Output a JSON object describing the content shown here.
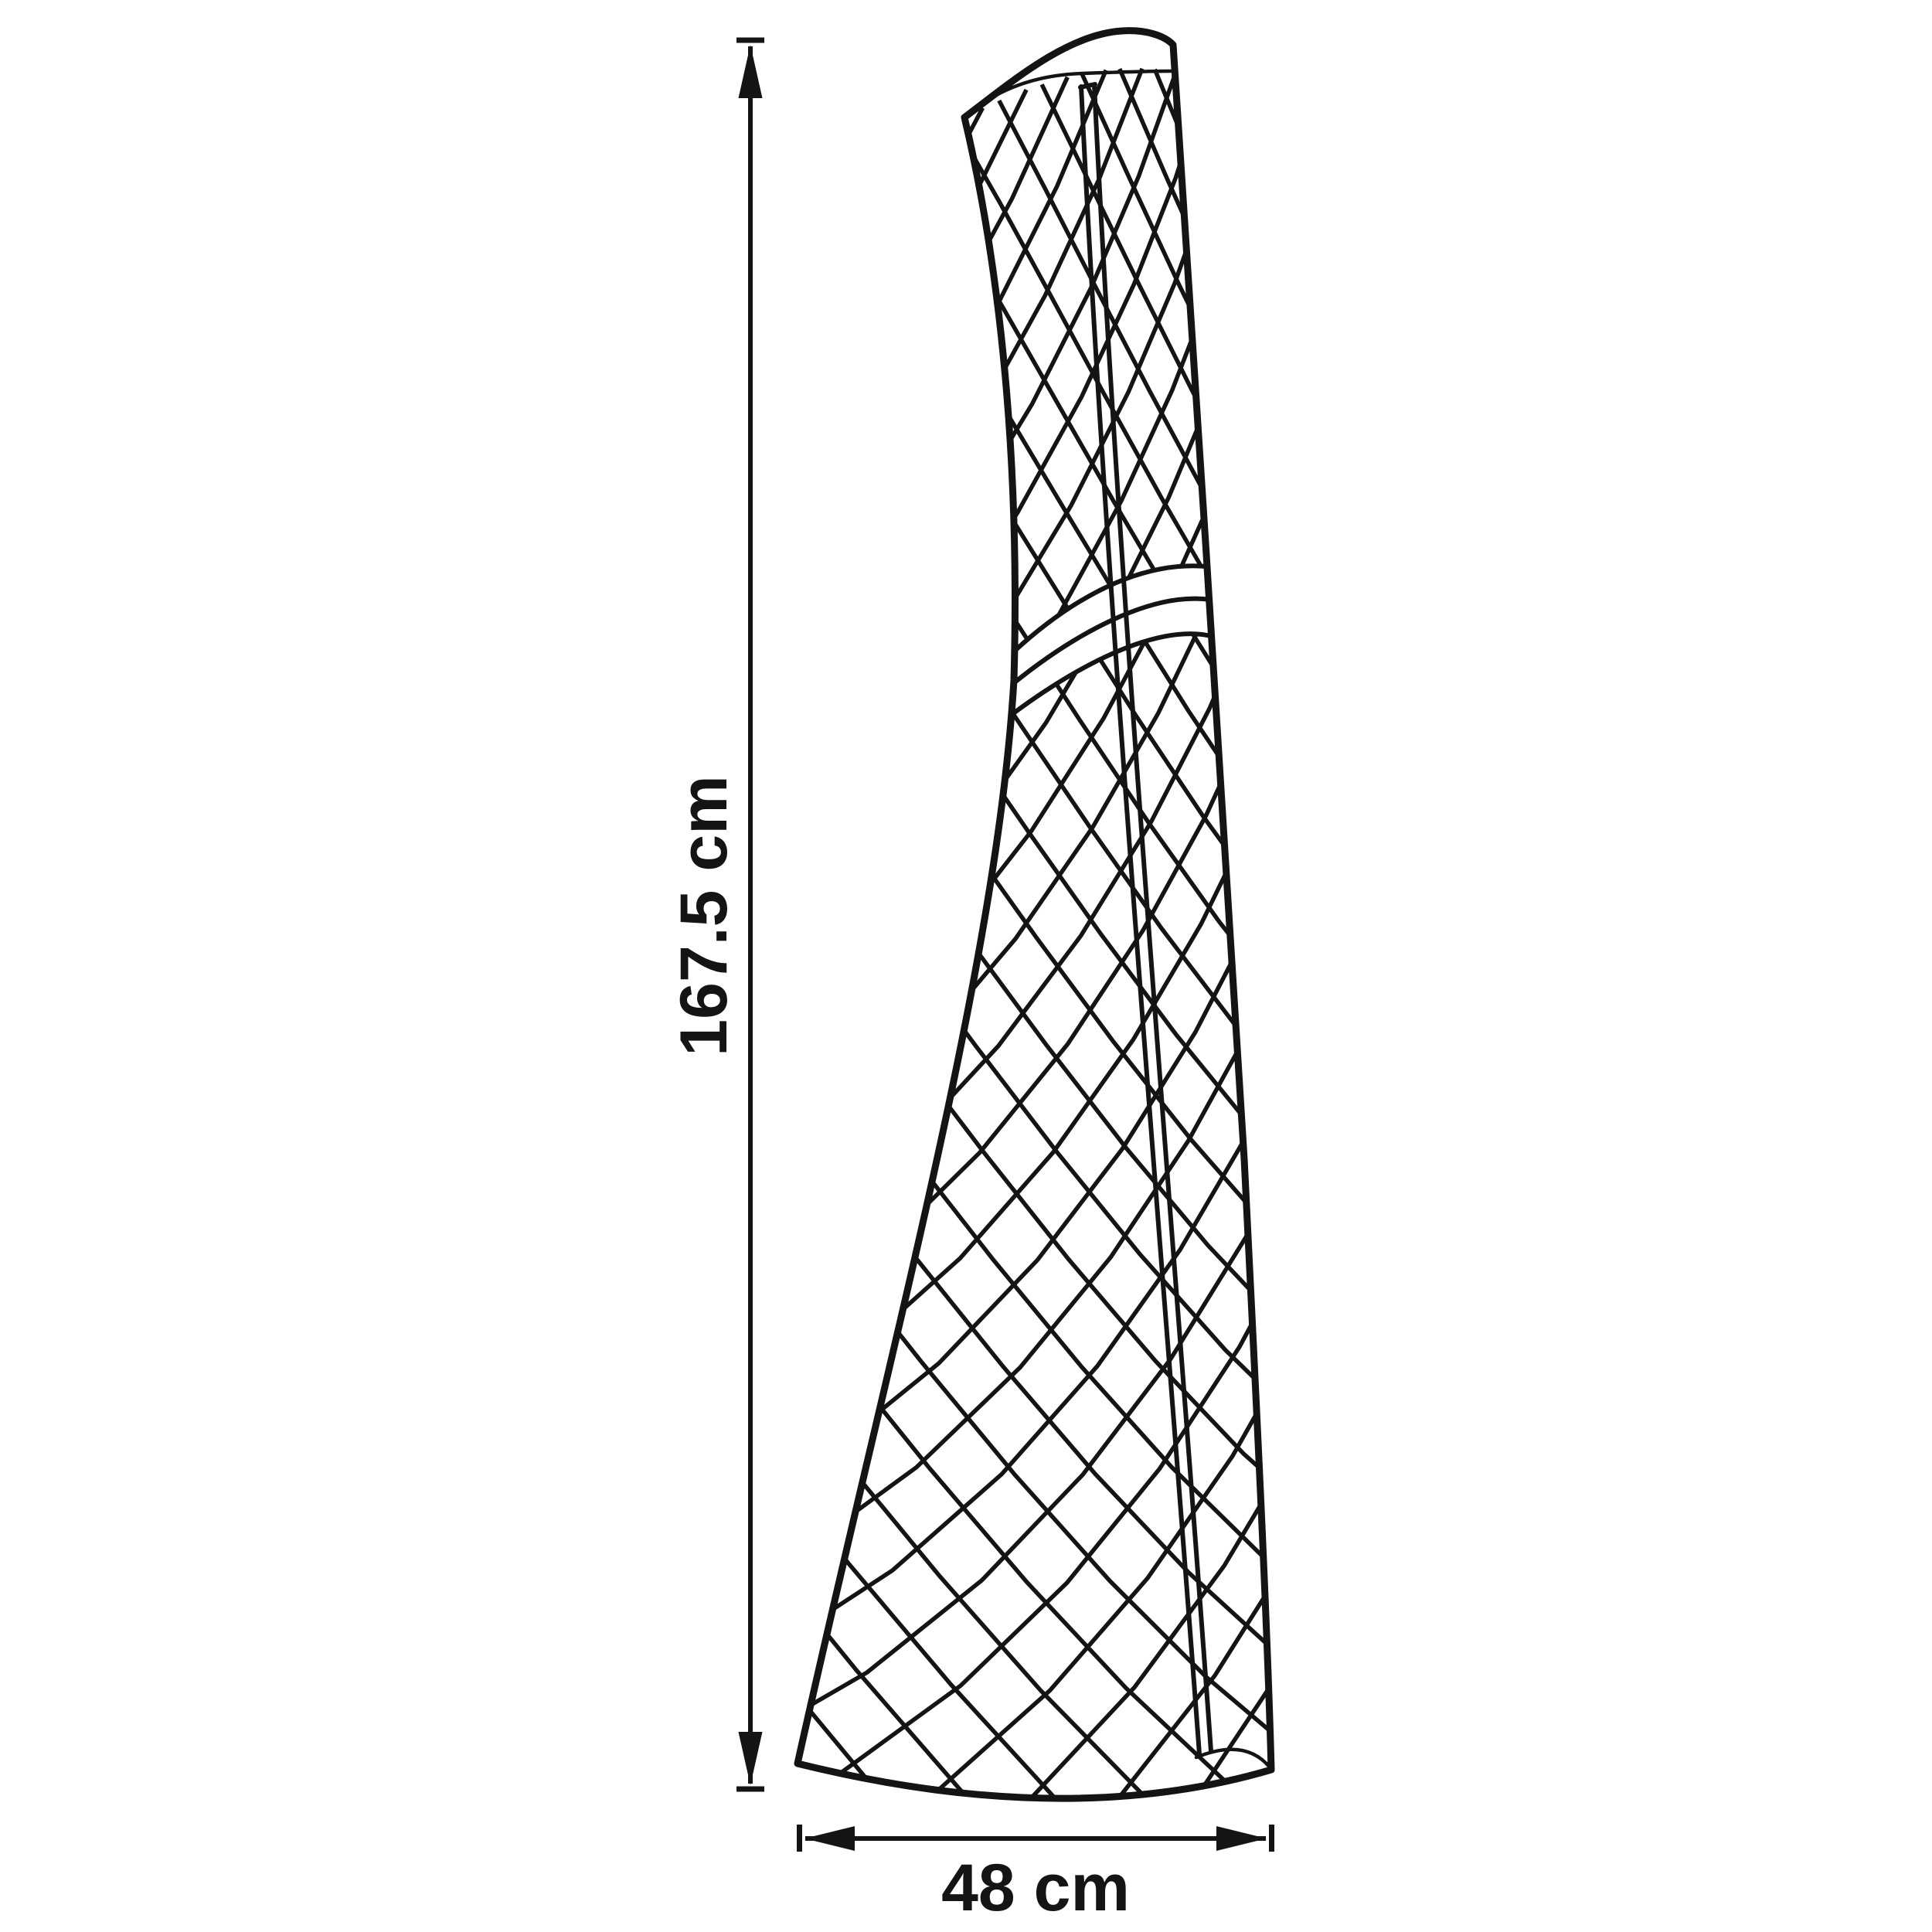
{
  "diagram": {
    "type": "product-dimension-line-drawing",
    "subject": "tapered protective cover with diamond lattice pattern, vertical zipper and wrap strap",
    "background_color": "#ffffff",
    "line_color": "#141414",
    "dimensions": {
      "height": {
        "label": "167.5 cm",
        "value": 167.5,
        "unit": "cm",
        "orientation": "vertical"
      },
      "width": {
        "label": "48 cm",
        "value": 48,
        "unit": "cm",
        "orientation": "horizontal"
      }
    }
  }
}
